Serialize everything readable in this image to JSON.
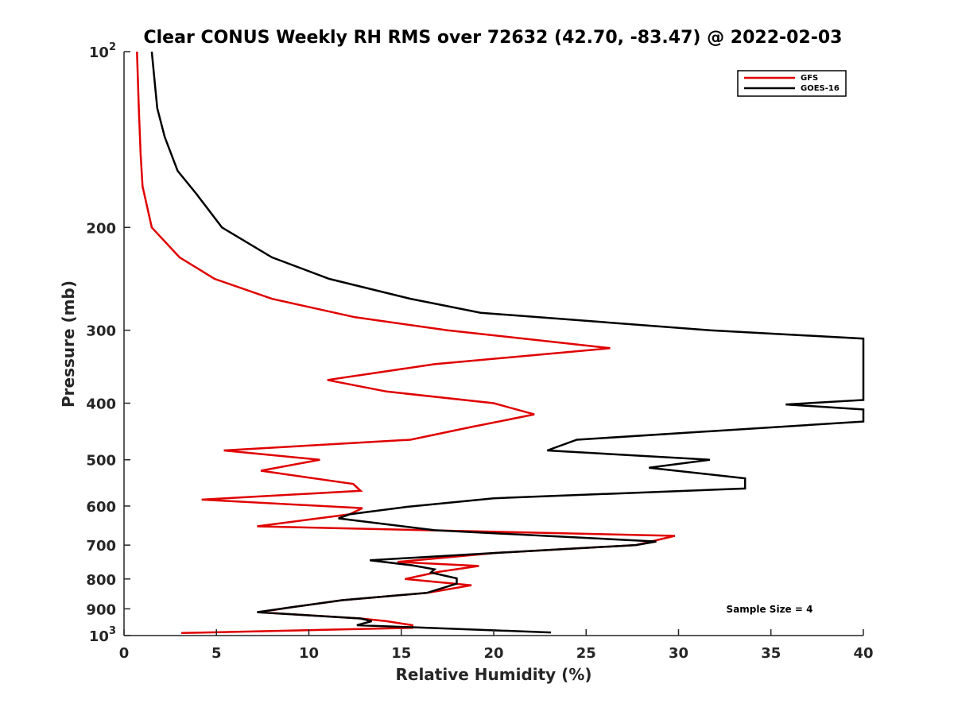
{
  "chart_data": {
    "type": "line",
    "title": "Clear CONUS Weekly RH RMS over 72632 (42.70, -83.47) @ 2022-02-03",
    "xlabel": "Relative Humidity (%)",
    "ylabel": "Pressure (mb)",
    "xlim": [
      0,
      40
    ],
    "ylim": [
      100,
      1000
    ],
    "y_scale": "log",
    "y_reversed": true,
    "x_ticks": [
      "0",
      "5",
      "10",
      "15",
      "20",
      "25",
      "30",
      "35",
      "40"
    ],
    "y_ticks": [
      {
        "value": 100,
        "base": "10",
        "exp": "2"
      },
      {
        "value": 200,
        "label": "200"
      },
      {
        "value": 300,
        "label": "300"
      },
      {
        "value": 400,
        "label": "400"
      },
      {
        "value": 500,
        "label": "500"
      },
      {
        "value": 600,
        "label": "600"
      },
      {
        "value": 700,
        "label": "700"
      },
      {
        "value": 800,
        "label": "800"
      },
      {
        "value": 900,
        "label": "900"
      },
      {
        "value": 1000,
        "base": "10",
        "exp": "3"
      }
    ],
    "legend_position": "top-right",
    "annotation": "Sample Size = 4",
    "series": [
      {
        "name": "GFS",
        "color": "#e00000",
        "points": [
          [
            0.7,
            100
          ],
          [
            0.8,
            125
          ],
          [
            0.9,
            150
          ],
          [
            1.0,
            170
          ],
          [
            1.5,
            200
          ],
          [
            3.0,
            225
          ],
          [
            4.9,
            245
          ],
          [
            8.0,
            265
          ],
          [
            12.5,
            285
          ],
          [
            17.5,
            300
          ],
          [
            26.3,
            322
          ],
          [
            16.8,
            343
          ],
          [
            11.0,
            365
          ],
          [
            14.2,
            382
          ],
          [
            20.0,
            400
          ],
          [
            22.2,
            418
          ],
          [
            18.7,
            440
          ],
          [
            15.5,
            462
          ],
          [
            5.4,
            482
          ],
          [
            10.6,
            500
          ],
          [
            7.4,
            522
          ],
          [
            12.4,
            550
          ],
          [
            12.8,
            565
          ],
          [
            4.2,
            585
          ],
          [
            12.9,
            605
          ],
          [
            12.2,
            620
          ],
          [
            7.2,
            650
          ],
          [
            29.8,
            675
          ],
          [
            27.7,
            700
          ],
          [
            20.1,
            722
          ],
          [
            14.8,
            748
          ],
          [
            19.2,
            760
          ],
          [
            17.0,
            778
          ],
          [
            15.2,
            800
          ],
          [
            18.8,
            820
          ],
          [
            16.4,
            845
          ],
          [
            11.8,
            870
          ],
          [
            9.2,
            893
          ],
          [
            7.3,
            912
          ],
          [
            12.8,
            935
          ],
          [
            14.2,
            945
          ],
          [
            15.6,
            960
          ],
          [
            15.6,
            970
          ],
          [
            12.5,
            975
          ],
          [
            3.1,
            990
          ]
        ]
      },
      {
        "name": "GOES-16",
        "color": "#000000",
        "points": [
          [
            1.5,
            100
          ],
          [
            1.8,
            125
          ],
          [
            2.2,
            140
          ],
          [
            2.9,
            160
          ],
          [
            3.9,
            175
          ],
          [
            5.3,
            200
          ],
          [
            8.0,
            225
          ],
          [
            11.1,
            245
          ],
          [
            15.5,
            265
          ],
          [
            19.3,
            280
          ],
          [
            31.7,
            300
          ],
          [
            40.0,
            310
          ],
          [
            40.0,
            395
          ],
          [
            35.8,
            402
          ],
          [
            40.0,
            410
          ],
          [
            40.0,
            430
          ],
          [
            24.5,
            462
          ],
          [
            22.9,
            482
          ],
          [
            31.7,
            500
          ],
          [
            28.4,
            516
          ],
          [
            33.6,
            538
          ],
          [
            33.6,
            560
          ],
          [
            20.0,
            582
          ],
          [
            15.3,
            602
          ],
          [
            12.2,
            620
          ],
          [
            11.6,
            630
          ],
          [
            16.8,
            660
          ],
          [
            28.8,
            690
          ],
          [
            27.7,
            700
          ],
          [
            20.1,
            722
          ],
          [
            13.3,
            743
          ],
          [
            15.6,
            758
          ],
          [
            16.8,
            770
          ],
          [
            16.6,
            780
          ],
          [
            18.0,
            798
          ],
          [
            18.0,
            815
          ],
          [
            16.4,
            845
          ],
          [
            11.8,
            870
          ],
          [
            9.2,
            893
          ],
          [
            7.2,
            912
          ],
          [
            12.8,
            935
          ],
          [
            13.4,
            945
          ],
          [
            12.6,
            960
          ],
          [
            14.5,
            965
          ],
          [
            23.1,
            988
          ]
        ]
      }
    ]
  }
}
